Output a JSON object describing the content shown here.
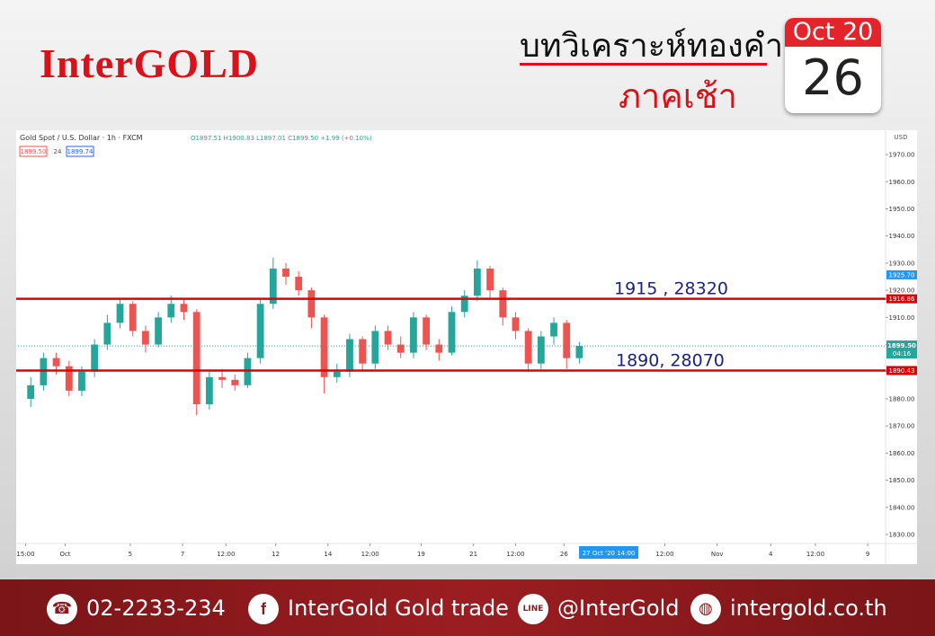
{
  "header": {
    "brand": "InterGOLD",
    "title": "บทวิเคราะห์ทองคำ",
    "subtitle": "ภาคเช้า",
    "calendar": {
      "month_year": "Oct 20",
      "day": "26"
    }
  },
  "chart_data": {
    "type": "candlestick",
    "symbol": "Gold Spot / U.S. Dollar · 1h · FXCM",
    "ohlc_readout": "O1897.51 H1900.83 L1897.01 C1899.50 +1.99 (+0.10%)",
    "bid": "1899.50",
    "spread": "24",
    "ask": "1899.74",
    "currency": "USD",
    "up_color": "#26a69a",
    "down_color": "#ef5350",
    "level_color": "#e00000",
    "open": [
      1880,
      1885,
      1895,
      1892,
      1883,
      1890,
      1900,
      1908,
      1915,
      1905,
      1900,
      1910,
      1915,
      1912,
      1878,
      1888,
      1887,
      1885,
      1895,
      1915,
      1928,
      1925,
      1920,
      1910,
      1888,
      1890,
      1902,
      1893,
      1905,
      1900,
      1897,
      1910,
      1900,
      1897,
      1912,
      1918,
      1928,
      1920,
      1910,
      1905,
      1893,
      1903,
      1908,
      1895
    ],
    "high": [
      1888,
      1897,
      1897,
      1894,
      1892,
      1902,
      1911,
      1917,
      1916,
      1907,
      1912,
      1918,
      1917,
      1913,
      1890,
      1891,
      1889,
      1897,
      1917,
      1932,
      1930,
      1927,
      1921,
      1911,
      1893,
      1904,
      1903,
      1907,
      1907,
      1903,
      1912,
      1911,
      1902,
      1914,
      1920,
      1931,
      1929,
      1921,
      1912,
      1906,
      1905,
      1910,
      1909,
      1901
    ],
    "low": [
      1877,
      1883,
      1889,
      1881,
      1881,
      1888,
      1898,
      1906,
      1903,
      1897,
      1899,
      1908,
      1909,
      1874,
      1876,
      1884,
      1883,
      1884,
      1893,
      1913,
      1922,
      1918,
      1906,
      1882,
      1886,
      1888,
      1890,
      1891,
      1898,
      1895,
      1895,
      1898,
      1894,
      1896,
      1910,
      1916,
      1917,
      1907,
      1902,
      1890,
      1891,
      1900,
      1891,
      1893
    ],
    "close": [
      1885,
      1895,
      1892,
      1883,
      1890,
      1900,
      1908,
      1915,
      1905,
      1900,
      1910,
      1915,
      1912,
      1878,
      1888,
      1887,
      1885,
      1895,
      1915,
      1928,
      1925,
      1920,
      1910,
      1888,
      1890,
      1902,
      1893,
      1905,
      1900,
      1897,
      1910,
      1900,
      1897,
      1912,
      1918,
      1928,
      1920,
      1910,
      1905,
      1893,
      1903,
      1908,
      1895,
      1899.5
    ],
    "xlim": [
      -1,
      67
    ],
    "xticks": [
      {
        "value": -0.4,
        "label": "15:00"
      },
      {
        "value": 2.7,
        "label": "Oct"
      },
      {
        "value": 7.8,
        "label": "5"
      },
      {
        "value": 11.9,
        "label": "7"
      },
      {
        "value": 15.3,
        "label": "12:00"
      },
      {
        "value": 19.2,
        "label": "12"
      },
      {
        "value": 23.3,
        "label": "14"
      },
      {
        "value": 26.6,
        "label": "12:00"
      },
      {
        "value": 30.6,
        "label": "19"
      },
      {
        "value": 34.7,
        "label": "21"
      },
      {
        "value": 38.0,
        "label": "12:00"
      },
      {
        "value": 41.8,
        "label": "26"
      },
      {
        "value": 49.7,
        "label": "12:00"
      },
      {
        "value": 53.8,
        "label": "Nov"
      },
      {
        "value": 58.0,
        "label": "4"
      },
      {
        "value": 61.5,
        "label": "12:00"
      },
      {
        "value": 65.6,
        "label": "9"
      }
    ],
    "crosshair": {
      "value": 45.3,
      "label": "27 Oct '20  14:00"
    },
    "ylim": [
      1826.7,
      1974
    ],
    "yticks": [
      {
        "value": 1830,
        "label": "1830.00"
      },
      {
        "value": 1840,
        "label": "1840.00"
      },
      {
        "value": 1850,
        "label": "1850.00"
      },
      {
        "value": 1860,
        "label": "1860.00"
      },
      {
        "value": 1870,
        "label": "1870.00"
      },
      {
        "value": 1880,
        "label": "1880.00"
      },
      {
        "value": 1890,
        "label": "1890.00"
      },
      {
        "value": 1900,
        "label": "1900.00"
      },
      {
        "value": 1910,
        "label": "1910.00"
      },
      {
        "value": 1920,
        "label": "1920.00"
      },
      {
        "value": 1930,
        "label": "1930.00"
      },
      {
        "value": 1940,
        "label": "1940.00"
      },
      {
        "value": 1950,
        "label": "1950.00"
      },
      {
        "value": 1960,
        "label": "1960.00"
      },
      {
        "value": 1970,
        "label": "1970.00"
      }
    ],
    "levels": [
      {
        "value": 1916.86,
        "label": "1916.86",
        "note": "1915 , 28320"
      },
      {
        "value": 1890.43,
        "label": "1890.43",
        "note": "1890, 28070"
      }
    ],
    "last_price": {
      "value": 1899.5,
      "label": "1899.50",
      "countdown": "04:16"
    },
    "high_marker": {
      "value": 1925.7,
      "label": "1925.70"
    }
  },
  "footer": {
    "phone": "02-2233-234",
    "facebook": "InterGold Gold trade",
    "line": "@InterGold",
    "website": "intergold.co.th"
  }
}
